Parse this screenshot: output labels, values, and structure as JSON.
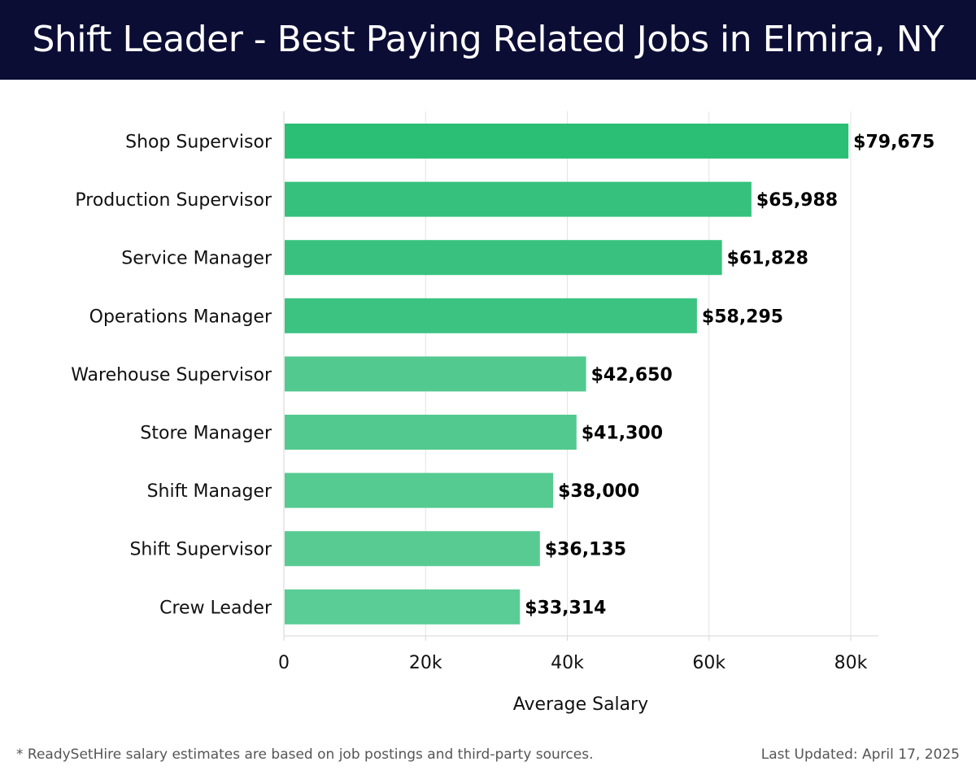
{
  "header": {
    "title": "Shift Leader - Best Paying Related Jobs in Elmira, NY"
  },
  "chart_data": {
    "type": "bar",
    "orientation": "horizontal",
    "title": "Shift Leader - Best Paying Related Jobs in Elmira, NY",
    "xlabel": "Average Salary",
    "ylabel": "",
    "xlim": [
      0,
      80000
    ],
    "grid": true,
    "categories": [
      "Shop Supervisor",
      "Production Supervisor",
      "Service Manager",
      "Operations Manager",
      "Warehouse Supervisor",
      "Store Manager",
      "Shift Manager",
      "Shift Supervisor",
      "Crew Leader"
    ],
    "values": [
      79675,
      65988,
      61828,
      58295,
      42650,
      41300,
      38000,
      36135,
      33314
    ],
    "value_labels": [
      "$79,675",
      "$65,988",
      "$61,828",
      "$58,295",
      "$42,650",
      "$41,300",
      "$38,000",
      "$36,135",
      "$33,314"
    ],
    "ticks": [
      0,
      20000,
      40000,
      60000,
      80000
    ],
    "tick_labels": [
      "0",
      "20k",
      "40k",
      "60k",
      "80k"
    ],
    "bar_colors": [
      "#2bbf76",
      "#36c27d",
      "#39c27f",
      "#3cc382",
      "#52c98f",
      "#52c98f",
      "#55ca91",
      "#58cb93",
      "#5acc95"
    ]
  },
  "footer": {
    "note": "* ReadySetHire salary estimates are based on job postings and third-party sources.",
    "updated": "Last Updated: April 17, 2025"
  }
}
